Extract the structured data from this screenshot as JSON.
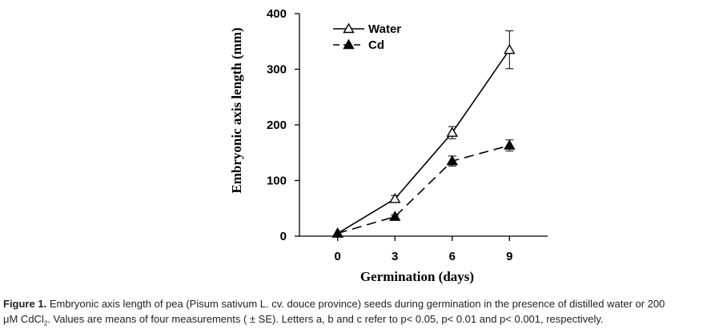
{
  "chart_data": {
    "type": "line",
    "xlabel": "Germination (days)",
    "ylabel": "Embryonic axis length (mm)",
    "x": [
      0,
      3,
      6,
      9
    ],
    "xticks": [
      0,
      3,
      6,
      9
    ],
    "yticks": [
      0,
      100,
      200,
      300,
      400
    ],
    "xlim": [
      -2,
      11
    ],
    "ylim": [
      0,
      400
    ],
    "grid": false,
    "legend_position": "top-left",
    "series": [
      {
        "name": "Water",
        "values": [
          5,
          67,
          186,
          335
        ],
        "errors": [
          0,
          6,
          11,
          34
        ],
        "marker": "open-triangle",
        "line": "solid"
      },
      {
        "name": "Cd",
        "values": [
          5,
          35,
          135,
          163
        ],
        "errors": [
          0,
          3,
          9,
          10
        ],
        "marker": "filled-triangle",
        "line": "dashed"
      }
    ]
  },
  "caption": {
    "label": "Figure 1.",
    "text_part1": "Embryonic axis length of pea (Pisum sativum L. cv. douce province) seeds during germination in the presence of distilled water or 200",
    "text_part2a": "μM CdCl",
    "text_sub": "2",
    "text_part2b": ". Values are means of four measurements ( ± SE). Letters a, b and c refer to p< 0.05, p< 0.01 and p< 0.001, respectively."
  }
}
